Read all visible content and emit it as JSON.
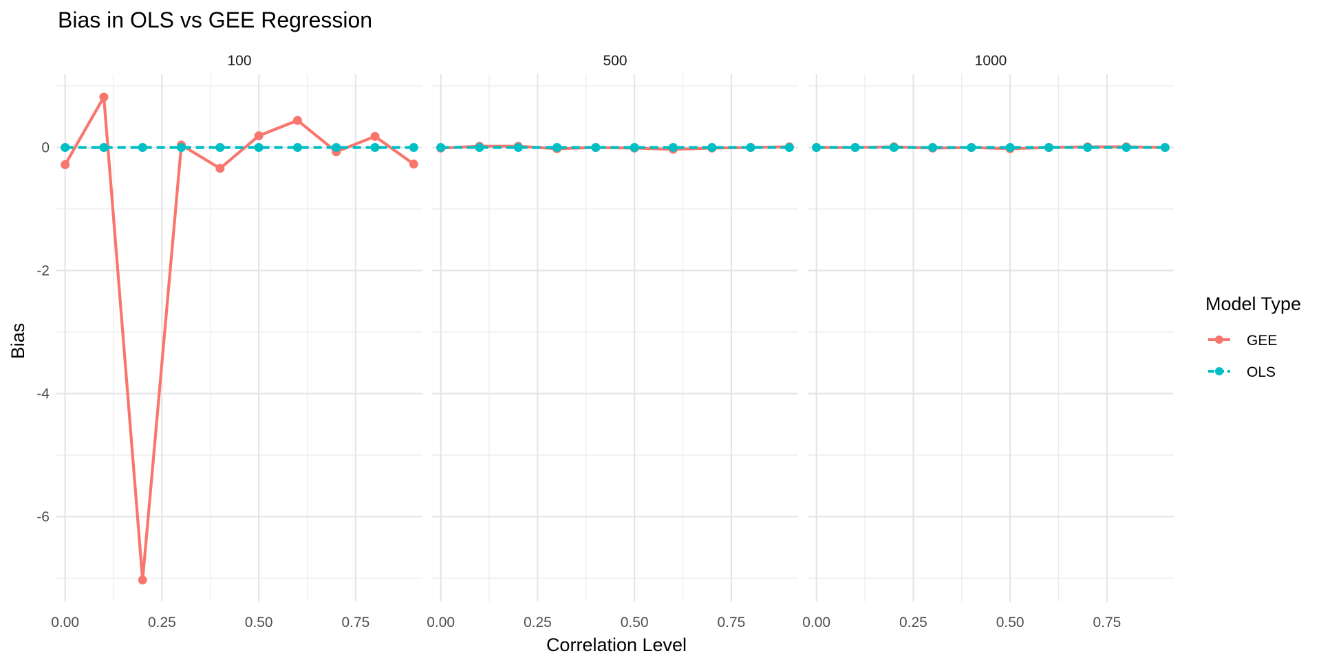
{
  "chart_data": {
    "type": "line",
    "title": "Bias in OLS vs GEE Regression",
    "xlabel": "Correlation Level",
    "ylabel": "Bias",
    "x": [
      0,
      0.1,
      0.2,
      0.3,
      0.4,
      0.5,
      0.6,
      0.7,
      0.8,
      0.9
    ],
    "xlim": [
      -0.0225,
      0.9225
    ],
    "ylim": [
      -7.38,
      1.19
    ],
    "x_ticks": [
      0,
      0.25,
      0.5,
      0.75
    ],
    "x_tick_labels": [
      "0.00",
      "0.25",
      "0.50",
      "0.75"
    ],
    "y_ticks": [
      0,
      -2,
      -4,
      -6
    ],
    "y_tick_labels": [
      "0",
      "-2",
      "-4",
      "-6"
    ],
    "grid": true,
    "legend": {
      "title": "Model Type",
      "position": "right",
      "entries": [
        "GEE",
        "OLS"
      ]
    },
    "colors": {
      "GEE": "#F8766D",
      "OLS": "#00BFC4"
    },
    "facets": [
      {
        "label": "100",
        "series": [
          {
            "name": "GEE",
            "line": "solid",
            "values": [
              -0.28,
              0.82,
              -7.03,
              0.04,
              -0.34,
              0.19,
              0.44,
              -0.07,
              0.18,
              -0.27
            ]
          },
          {
            "name": "OLS",
            "line": "dashed",
            "values": [
              0,
              0,
              0,
              0,
              0,
              0,
              0,
              0,
              0,
              0
            ]
          }
        ]
      },
      {
        "label": "500",
        "series": [
          {
            "name": "GEE",
            "line": "solid",
            "values": [
              -0.01,
              0.02,
              0.02,
              -0.02,
              0.0,
              -0.01,
              -0.03,
              -0.01,
              0.0,
              0.01
            ]
          },
          {
            "name": "OLS",
            "line": "dashed",
            "values": [
              0,
              0,
              0,
              0,
              0,
              0,
              0,
              0,
              0,
              0
            ]
          }
        ]
      },
      {
        "label": "1000",
        "series": [
          {
            "name": "GEE",
            "line": "solid",
            "values": [
              0.0,
              0.0,
              0.01,
              -0.01,
              0.0,
              -0.02,
              0.0,
              0.01,
              0.01,
              0.0
            ]
          },
          {
            "name": "OLS",
            "line": "dashed",
            "values": [
              0,
              0,
              0,
              0,
              0,
              0,
              0,
              0,
              0,
              0
            ]
          }
        ]
      }
    ]
  }
}
